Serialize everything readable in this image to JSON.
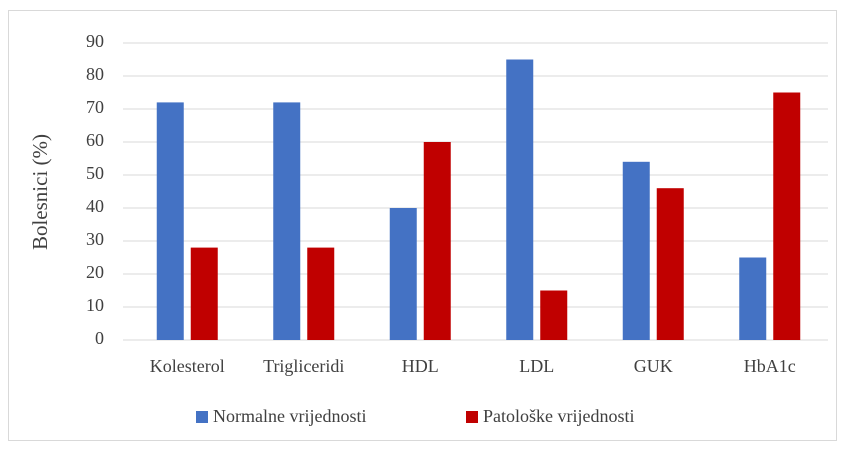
{
  "chart_data": {
    "type": "bar",
    "categories": [
      "Kolesterol",
      "Trigliceridi",
      "HDL",
      "LDL",
      "GUK",
      "HbA1c"
    ],
    "series": [
      {
        "name": "Normalne vrijednosti",
        "color": "#4472c4",
        "values": [
          72,
          72,
          40,
          85,
          54,
          25
        ]
      },
      {
        "name": "Patološke vrijednosti",
        "color": "#c00000",
        "values": [
          28,
          28,
          60,
          15,
          46,
          75
        ]
      }
    ],
    "ylabel": "Bolesnici (%)",
    "ylim": [
      0,
      90
    ],
    "yticks": [
      0,
      10,
      20,
      30,
      40,
      50,
      60,
      70,
      80,
      90
    ],
    "grid": true,
    "legend": "bottom"
  }
}
